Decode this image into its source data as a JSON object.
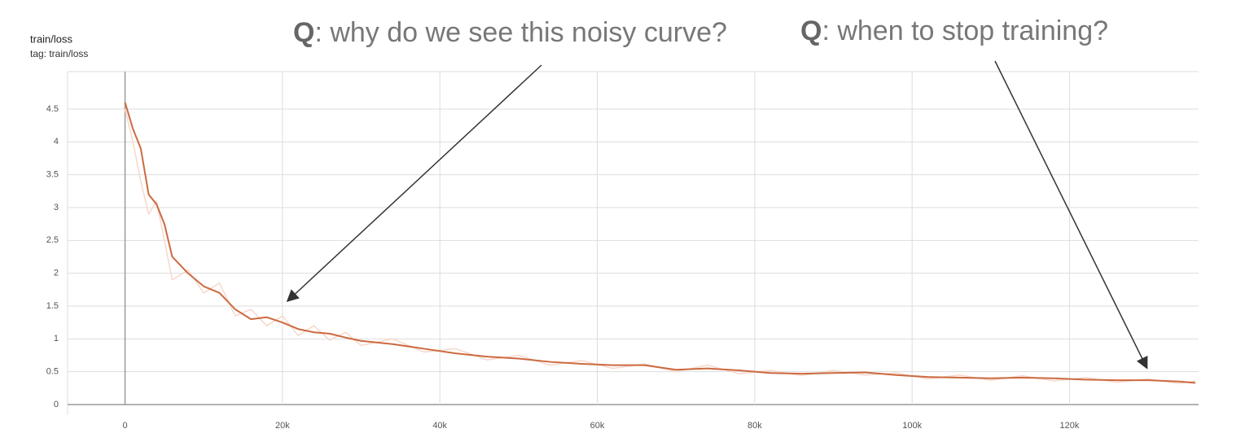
{
  "chart_data": {
    "type": "line",
    "title": "train/loss",
    "subtitle": "tag: train/loss",
    "annotations": [
      {
        "label": "Q",
        "text": ": why do we see this noisy curve?"
      },
      {
        "label": "Q",
        "text": ": when to stop training?"
      }
    ],
    "x": [
      0,
      1000,
      2000,
      3000,
      4000,
      5000,
      6000,
      8000,
      10000,
      12000,
      14000,
      16000,
      18000,
      20000,
      22000,
      24000,
      26000,
      28000,
      30000,
      34000,
      38000,
      42000,
      46000,
      50000,
      54000,
      58000,
      62000,
      66000,
      70000,
      74000,
      78000,
      82000,
      86000,
      90000,
      94000,
      98000,
      102000,
      106000,
      110000,
      114000,
      118000,
      122000,
      126000,
      130000,
      134000,
      136000
    ],
    "series": [
      {
        "color": "#f6d8cb",
        "values": [
          4.5,
          4.0,
          3.4,
          2.9,
          3.1,
          2.5,
          1.9,
          2.05,
          1.7,
          1.85,
          1.35,
          1.45,
          1.2,
          1.35,
          1.05,
          1.2,
          0.98,
          1.1,
          0.9,
          1.0,
          0.8,
          0.85,
          0.68,
          0.75,
          0.6,
          0.67,
          0.55,
          0.62,
          0.5,
          0.6,
          0.47,
          0.52,
          0.44,
          0.52,
          0.45,
          0.48,
          0.39,
          0.45,
          0.37,
          0.44,
          0.36,
          0.41,
          0.34,
          0.39,
          0.32,
          0.36
        ]
      },
      {
        "color": "#cc6a40",
        "values": [
          4.6,
          4.2,
          3.9,
          3.2,
          3.05,
          2.75,
          2.25,
          2.0,
          1.8,
          1.7,
          1.45,
          1.3,
          1.33,
          1.25,
          1.15,
          1.1,
          1.08,
          1.02,
          0.97,
          0.92,
          0.85,
          0.78,
          0.73,
          0.7,
          0.65,
          0.62,
          0.6,
          0.6,
          0.53,
          0.55,
          0.52,
          0.48,
          0.47,
          0.48,
          0.49,
          0.45,
          0.42,
          0.41,
          0.4,
          0.41,
          0.4,
          0.38,
          0.37,
          0.37,
          0.35,
          0.33
        ]
      }
    ],
    "xlim": [
      -7300,
      136400
    ],
    "ylim": [
      0,
      5.07
    ],
    "xticks": [
      0,
      {
        "value": 20000,
        "label": "20k"
      },
      {
        "value": 40000,
        "label": "40k"
      },
      {
        "value": 60000,
        "label": "60k"
      },
      {
        "value": 80000,
        "label": "80k"
      },
      {
        "value": 100000,
        "label": "100k"
      },
      {
        "value": 120000,
        "label": "120k"
      }
    ],
    "yticks": [
      0,
      0.5,
      1,
      1.5,
      2,
      2.5,
      3,
      3.5,
      4,
      4.5
    ],
    "grid": true
  }
}
